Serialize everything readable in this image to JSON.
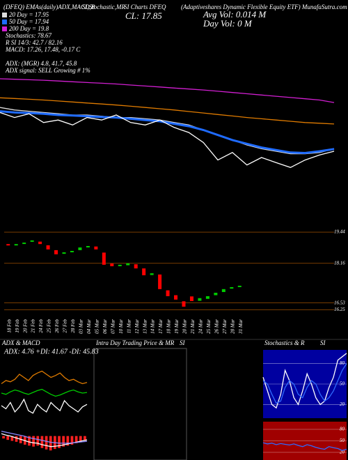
{
  "header": [
    "(DFEQ) EMAs(daily)ADX,MACD,B",
    "SI,Stochastic,MR",
    "SI Charts DFEQ",
    "(Adaptiveshares Dynamic Flexible Equity ETF) MunafaSutra.com"
  ],
  "info": [
    "Stochastics: 78.67",
    "R        SI 14/3: 42.7 / 82.16",
    "MACD: 17.26, 17.48, -0.17 C",
    "ADX:              (MGR) 4.8, 41.7, 45.8",
    "ADX  signal: SELL Growing # 1%"
  ],
  "close": "CL: 17.85",
  "avg_vol": "Avg Vol: 0.014  M",
  "day_vol": "Day Vol: 0   M",
  "intraday_title": "Intra Day Trading Price  & MR",
  "intraday_si": "SI",
  "chart_data": [
    {
      "type": "line",
      "ylim": [
        14.7,
        23.9
      ],
      "series": [
        {
          "name": "200  Day = 19.8",
          "color": "#d21fd2",
          "values": [
            20.75,
            20.73,
            20.71,
            20.69,
            20.66,
            20.63,
            20.6,
            20.57,
            20.54,
            20.5,
            20.46,
            20.42,
            20.38,
            20.34,
            20.3,
            20.25,
            20.2,
            20.15,
            20.1,
            20.05,
            20.0,
            19.95,
            19.9,
            19.8
          ]
        },
        {
          "color": "#e07b00",
          "values": [
            19.99,
            19.96,
            19.93,
            19.9,
            19.86,
            19.82,
            19.78,
            19.74,
            19.7,
            19.65,
            19.6,
            19.55,
            19.5,
            19.44,
            19.38,
            19.32,
            19.26,
            19.2,
            19.15,
            19.1,
            19.05,
            19.0,
            18.97,
            18.94
          ]
        },
        {
          "name": "20 Day = 17.95",
          "color": "#dddddd",
          "values": [
            19.6,
            19.5,
            19.45,
            19.4,
            19.35,
            19.3,
            19.3,
            19.25,
            19.2,
            19.2,
            19.15,
            19.1,
            19.0,
            18.9,
            18.7,
            18.5,
            18.3,
            18.1,
            17.95,
            17.85,
            17.75,
            17.75,
            17.8,
            17.95
          ]
        },
        {
          "name": "50 Day = 17.94",
          "color": "#1f6bff",
          "values": [
            19.45,
            19.4,
            19.38,
            19.35,
            19.3,
            19.28,
            19.25,
            19.22,
            19.2,
            19.15,
            19.1,
            19.05,
            18.95,
            18.85,
            18.7,
            18.5,
            18.3,
            18.15,
            18.0,
            17.9,
            17.8,
            17.78,
            17.85,
            17.94
          ]
        },
        {
          "color": "#ffffff",
          "values": [
            19.4,
            19.2,
            19.35,
            19.0,
            19.1,
            18.9,
            19.2,
            19.1,
            19.3,
            19.0,
            18.9,
            19.1,
            18.8,
            18.6,
            18.2,
            17.5,
            17.8,
            17.3,
            17.6,
            17.4,
            17.2,
            17.5,
            17.7,
            17.85
          ]
        }
      ]
    },
    {
      "type": "candlestick",
      "ylim": [
        15.95,
        20.1
      ],
      "yticks": [
        19.44,
        18.16,
        16.53,
        16.25
      ],
      "grid": true,
      "grid_color": "#c06000",
      "categories": [
        "18 Feb",
        "19 Feb",
        "20 Feb",
        "21 Feb",
        "24 Feb",
        "25 Feb",
        "26 Feb",
        "27 Feb",
        "28 Feb",
        "03 Mar",
        "04 Mar",
        "05 Mar",
        "06 Mar",
        "07 Mar",
        "10 Mar",
        "11 Mar",
        "12 Mar",
        "13 Mar",
        "14 Mar",
        "17 Mar",
        "18 Mar",
        "19 Mar",
        "20 Mar",
        "21 Mar",
        "24 Mar",
        "25 Mar",
        "26 Mar",
        "27 Mar",
        "28 Mar",
        "31 Mar"
      ],
      "open": [
        18.95,
        18.9,
        18.98,
        19.05,
        19.05,
        18.9,
        18.7,
        18.55,
        18.62,
        18.7,
        18.82,
        18.85,
        18.6,
        18.15,
        18.05,
        18.08,
        18.12,
        17.95,
        17.68,
        17.7,
        17.05,
        16.85,
        16.6,
        16.8,
        16.62,
        16.7,
        16.85,
        16.98,
        17.12,
        17.2
      ],
      "close": [
        18.9,
        18.95,
        19.01,
        19.1,
        18.95,
        18.73,
        18.53,
        18.61,
        18.67,
        18.81,
        18.87,
        18.73,
        18.1,
        18.04,
        18.1,
        18.16,
        17.95,
        17.67,
        17.75,
        17.1,
        16.81,
        16.67,
        16.38,
        16.61,
        16.73,
        16.81,
        16.95,
        17.1,
        17.18,
        17.24
      ],
      "up_color": "#00cc00",
      "down_color": "#ff0000"
    },
    {
      "type": "line",
      "title": "ADX  & MACD",
      "subtitle": "ADX: 4.76  +DI: 41.67  -DI: 45.83",
      "ylim": [
        0,
        100
      ],
      "series": [
        {
          "color": "#e07b00",
          "values": [
            55,
            60,
            58,
            62,
            70,
            65,
            60,
            68,
            72,
            75,
            70,
            65,
            68,
            72,
            65,
            60,
            62,
            58,
            55,
            57
          ]
        },
        {
          "color": "#00cc00",
          "values": [
            40,
            38,
            42,
            45,
            43,
            40,
            38,
            41,
            44,
            46,
            42,
            38,
            35,
            37,
            40,
            43,
            45,
            42,
            40,
            41
          ]
        },
        {
          "color": "#ffffff",
          "values": [
            20,
            15,
            25,
            10,
            18,
            30,
            12,
            8,
            22,
            15,
            10,
            25,
            18,
            12,
            28,
            20,
            15,
            10,
            18,
            22
          ]
        }
      ]
    },
    {
      "type": "macd",
      "ylim": [
        -0.5,
        0.3
      ],
      "color": "#ff2020",
      "values": [
        -0.05,
        -0.08,
        -0.1,
        -0.12,
        -0.15,
        -0.18,
        -0.2,
        -0.22,
        -0.2,
        -0.25,
        -0.28,
        -0.3,
        -0.27,
        -0.25,
        -0.22,
        -0.2,
        -0.18,
        -0.15,
        -0.12,
        -0.1
      ],
      "series": [
        {
          "color": "#ffffff",
          "values": [
            0.05,
            0.02,
            0.0,
            -0.03,
            -0.06,
            -0.09,
            -0.12,
            -0.14,
            -0.15,
            -0.18,
            -0.2,
            -0.22,
            -0.21,
            -0.2,
            -0.18,
            -0.16,
            -0.14,
            -0.12,
            -0.1,
            -0.08
          ]
        },
        {
          "color": "#8888ff",
          "values": [
            0.1,
            0.08,
            0.06,
            0.04,
            0.02,
            0.0,
            -0.03,
            -0.05,
            -0.07,
            -0.09,
            -0.11,
            -0.13,
            -0.14,
            -0.15,
            -0.15,
            -0.15,
            -0.14,
            -0.13,
            -0.12,
            -0.11
          ]
        }
      ]
    },
    {
      "type": "line",
      "title": "Stochastics & R",
      "subtitle": "SI",
      "background": "#0000a0",
      "ylim": [
        0,
        100
      ],
      "yticks": [
        20,
        50,
        80
      ],
      "grid": true,
      "grid_color": "#ffffff",
      "series": [
        {
          "color": "#ffffff",
          "values": [
            60,
            40,
            20,
            15,
            35,
            70,
            55,
            30,
            20,
            40,
            65,
            50,
            30,
            20,
            25,
            45,
            60,
            85,
            90,
            95
          ]
        },
        {
          "color": "#2f6bff",
          "values": [
            55,
            50,
            35,
            22,
            25,
            45,
            55,
            50,
            35,
            30,
            45,
            55,
            50,
            35,
            25,
            30,
            40,
            55,
            70,
            80
          ]
        }
      ]
    },
    {
      "type": "line",
      "background": "#a00000",
      "ylim": [
        0,
        100
      ],
      "yticks": [
        20,
        50,
        80
      ],
      "grid": true,
      "grid_color": "#ffffff",
      "series": [
        {
          "color": "#2f6bff",
          "values": [
            45,
            42,
            44,
            40,
            43,
            41,
            39,
            42,
            38,
            35,
            40,
            37,
            33,
            30,
            28,
            35,
            32,
            30,
            25,
            28
          ]
        }
      ]
    }
  ]
}
